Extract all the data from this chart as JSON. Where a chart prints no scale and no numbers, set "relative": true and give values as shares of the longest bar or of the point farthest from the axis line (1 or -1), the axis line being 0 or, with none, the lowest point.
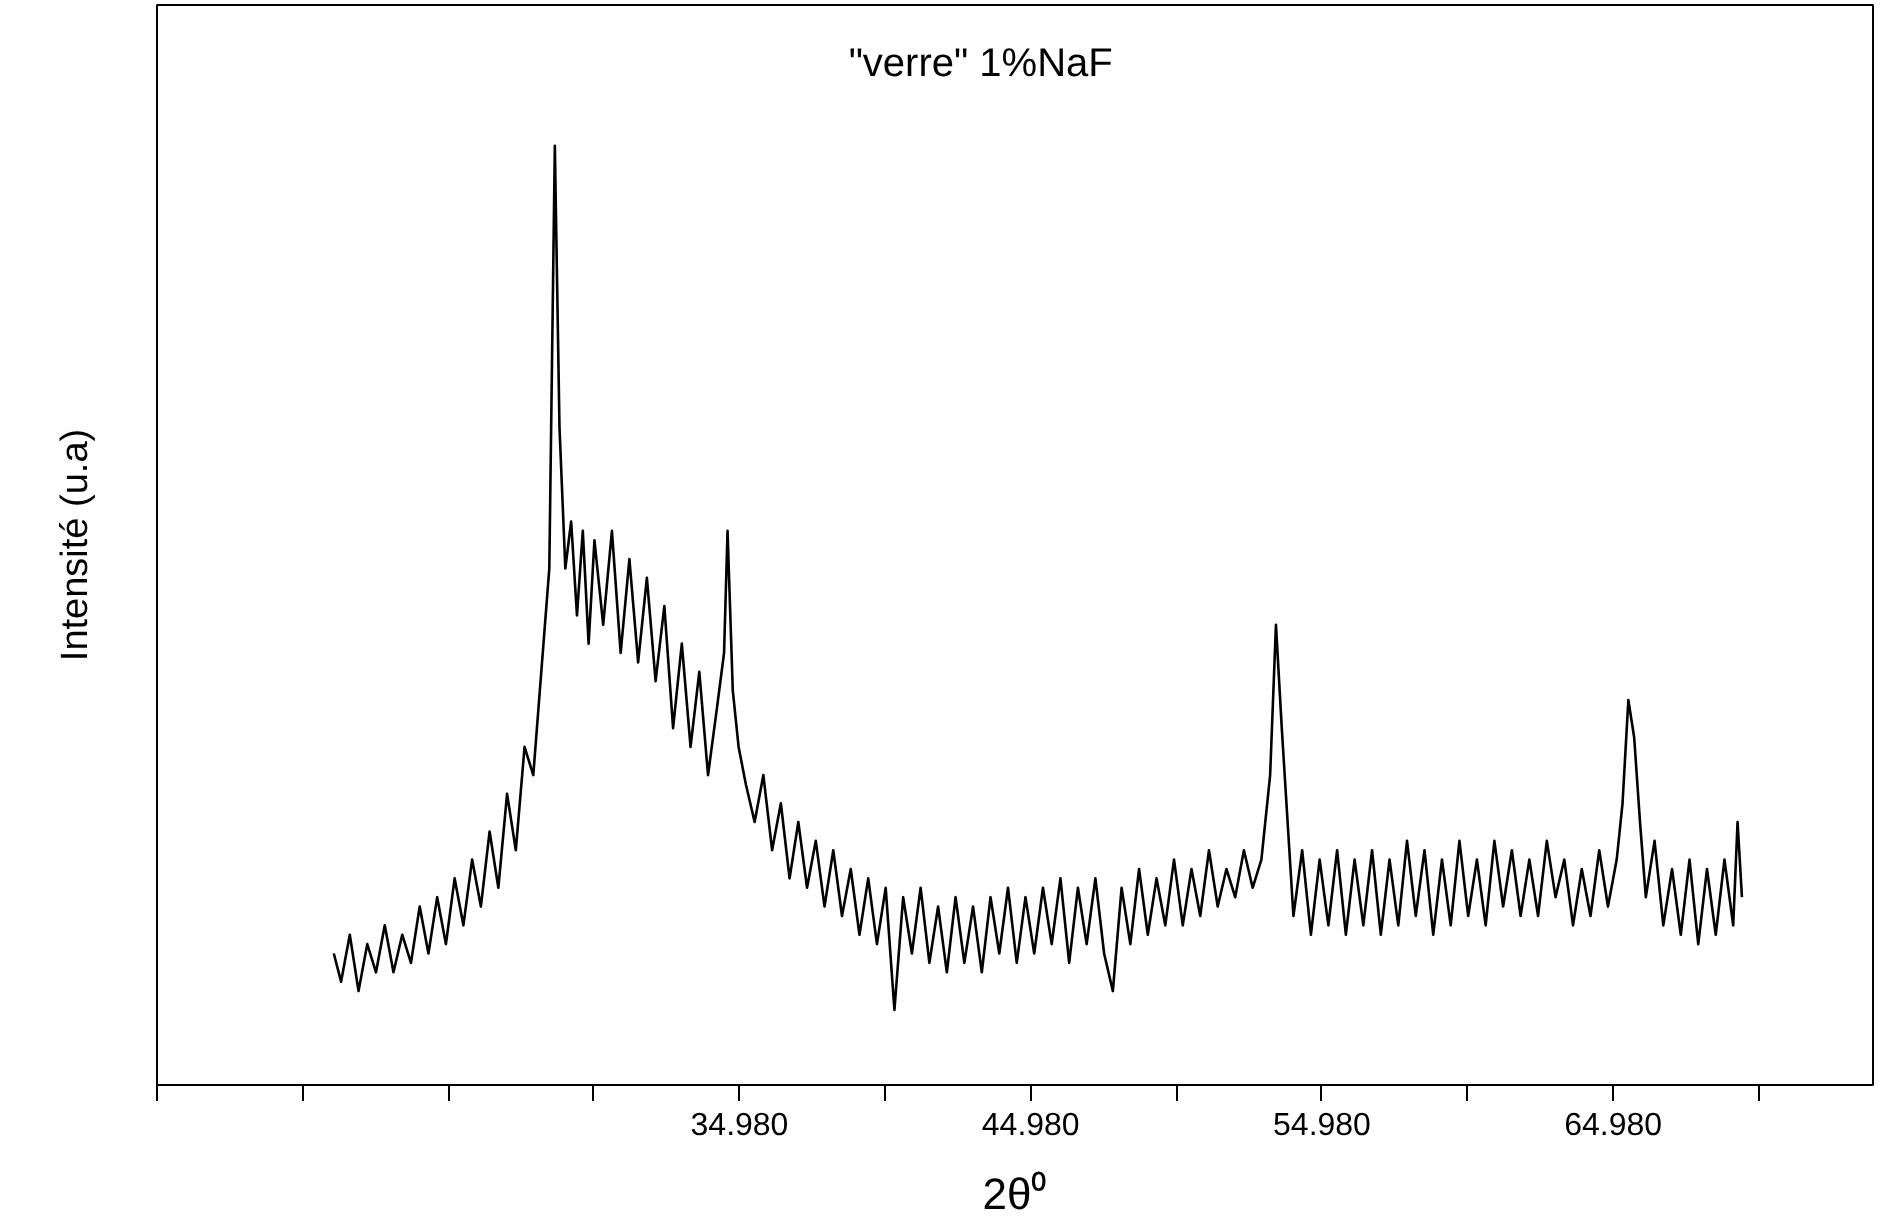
{
  "chart_data": {
    "type": "line",
    "relative": true,
    "xlabel": "2θ⁰",
    "ylabel": "Intensité (u.a)",
    "annotations": [
      "\"verre\" 1%NaF"
    ],
    "xlim": [
      14.98,
      73.9
    ],
    "xticks": [
      {
        "value": 14.98,
        "label": null
      },
      {
        "value": 19.98,
        "label": null
      },
      {
        "value": 24.98,
        "label": null
      },
      {
        "value": 29.98,
        "label": null
      },
      {
        "value": 34.98,
        "label": "34.980"
      },
      {
        "value": 39.98,
        "label": null
      },
      {
        "value": 44.98,
        "label": "44.980"
      },
      {
        "value": 49.98,
        "label": null
      },
      {
        "value": 54.98,
        "label": "54.980"
      },
      {
        "value": 59.98,
        "label": null
      },
      {
        "value": 64.98,
        "label": "64.980"
      },
      {
        "value": 69.98,
        "label": null
      }
    ],
    "tick_labels": "x",
    "grid": false,
    "marker": "none",
    "line_style": "solid",
    "series": [
      {
        "color": "#000000",
        "x": [
          21.05,
          21.3,
          21.6,
          21.9,
          22.2,
          22.5,
          22.8,
          23.1,
          23.4,
          23.7,
          24.0,
          24.3,
          24.6,
          24.9,
          25.2,
          25.5,
          25.8,
          26.1,
          26.4,
          26.7,
          27.0,
          27.3,
          27.6,
          27.9,
          28.2,
          28.45,
          28.64,
          28.8,
          29.0,
          29.2,
          29.4,
          29.6,
          29.8,
          30.0,
          30.3,
          30.6,
          30.9,
          31.2,
          31.5,
          31.8,
          32.1,
          32.4,
          32.7,
          33.0,
          33.3,
          33.6,
          33.9,
          34.2,
          34.45,
          34.57,
          34.75,
          34.95,
          35.2,
          35.5,
          35.8,
          36.1,
          36.4,
          36.7,
          37.0,
          37.3,
          37.6,
          37.9,
          38.2,
          38.5,
          38.8,
          39.1,
          39.4,
          39.7,
          40.0,
          40.3,
          40.6,
          40.9,
          41.2,
          41.5,
          41.8,
          42.1,
          42.4,
          42.7,
          43.0,
          43.3,
          43.6,
          43.9,
          44.2,
          44.5,
          44.8,
          45.1,
          45.4,
          45.7,
          46.0,
          46.3,
          46.6,
          46.9,
          47.2,
          47.5,
          47.8,
          48.1,
          48.4,
          48.7,
          49.0,
          49.3,
          49.6,
          49.9,
          50.2,
          50.5,
          50.8,
          51.1,
          51.4,
          51.7,
          52.0,
          52.3,
          52.6,
          52.9,
          53.2,
          53.4,
          53.6,
          53.8,
          54.0,
          54.3,
          54.6,
          54.9,
          55.2,
          55.5,
          55.8,
          56.1,
          56.4,
          56.7,
          57.0,
          57.3,
          57.6,
          57.9,
          58.2,
          58.5,
          58.8,
          59.1,
          59.4,
          59.7,
          60.0,
          60.3,
          60.6,
          60.9,
          61.2,
          61.5,
          61.8,
          62.1,
          62.4,
          62.7,
          63.0,
          63.3,
          63.6,
          63.9,
          64.2,
          64.5,
          64.8,
          65.1,
          65.3,
          65.5,
          65.7,
          65.9,
          66.1,
          66.4,
          66.7,
          67.0,
          67.3,
          67.6,
          67.9,
          68.2,
          68.5,
          68.8,
          69.1,
          69.25,
          69.4
        ],
        "values": [
          0.14,
          0.11,
          0.16,
          0.1,
          0.15,
          0.12,
          0.17,
          0.12,
          0.16,
          0.13,
          0.19,
          0.14,
          0.2,
          0.15,
          0.22,
          0.17,
          0.24,
          0.19,
          0.27,
          0.21,
          0.31,
          0.25,
          0.36,
          0.33,
          0.45,
          0.55,
          1.0,
          0.7,
          0.55,
          0.6,
          0.5,
          0.59,
          0.47,
          0.58,
          0.49,
          0.59,
          0.46,
          0.56,
          0.45,
          0.54,
          0.43,
          0.51,
          0.38,
          0.47,
          0.36,
          0.44,
          0.33,
          0.4,
          0.46,
          0.59,
          0.42,
          0.36,
          0.32,
          0.28,
          0.33,
          0.25,
          0.3,
          0.22,
          0.28,
          0.21,
          0.26,
          0.19,
          0.25,
          0.18,
          0.23,
          0.16,
          0.22,
          0.15,
          0.21,
          0.08,
          0.2,
          0.14,
          0.21,
          0.13,
          0.19,
          0.12,
          0.2,
          0.13,
          0.19,
          0.12,
          0.2,
          0.14,
          0.21,
          0.13,
          0.2,
          0.14,
          0.21,
          0.15,
          0.22,
          0.13,
          0.21,
          0.15,
          0.22,
          0.14,
          0.1,
          0.21,
          0.15,
          0.23,
          0.16,
          0.22,
          0.17,
          0.24,
          0.17,
          0.23,
          0.18,
          0.25,
          0.19,
          0.23,
          0.2,
          0.25,
          0.21,
          0.24,
          0.33,
          0.49,
          0.38,
          0.28,
          0.18,
          0.25,
          0.16,
          0.24,
          0.17,
          0.25,
          0.16,
          0.24,
          0.17,
          0.25,
          0.16,
          0.24,
          0.17,
          0.26,
          0.18,
          0.25,
          0.16,
          0.24,
          0.17,
          0.26,
          0.18,
          0.24,
          0.17,
          0.26,
          0.19,
          0.25,
          0.18,
          0.24,
          0.18,
          0.26,
          0.2,
          0.24,
          0.17,
          0.23,
          0.18,
          0.25,
          0.19,
          0.24,
          0.3,
          0.41,
          0.37,
          0.28,
          0.2,
          0.26,
          0.17,
          0.23,
          0.16,
          0.24,
          0.15,
          0.23,
          0.16,
          0.24,
          0.17,
          0.28,
          0.2
        ]
      }
    ]
  }
}
